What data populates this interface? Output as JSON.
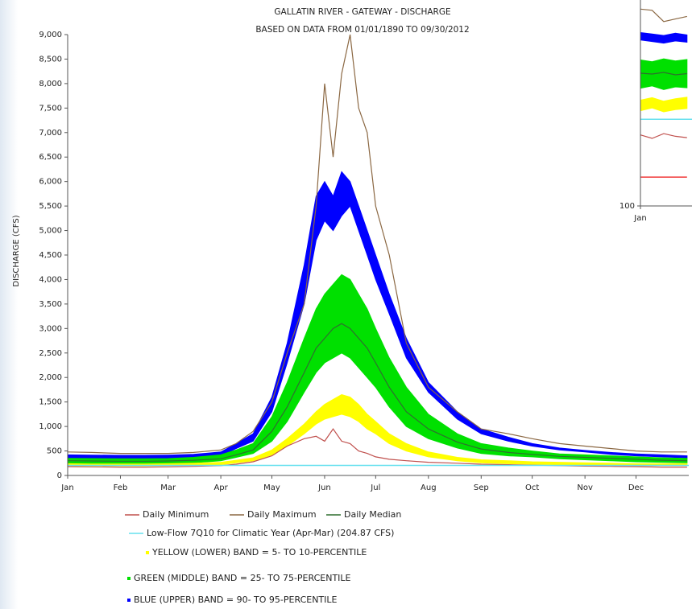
{
  "chart_data": [
    {
      "type": "line",
      "title": "GALLATIN RIVER - GATEWAY - DISCHARGE",
      "subtitle": "BASED ON DATA FROM 01/01/1890 TO 09/30/2012",
      "y_label": "DISCHARGE (CFS)",
      "x": [
        1,
        15,
        32,
        46,
        60,
        75,
        91,
        100,
        110,
        121,
        130,
        140,
        147,
        152,
        157,
        162,
        167,
        172,
        177,
        182,
        190,
        200,
        213,
        230,
        244,
        260,
        274,
        290,
        305,
        320,
        335,
        350,
        365
      ],
      "xlim": [
        1,
        366
      ],
      "xticks": [
        {
          "value": 1,
          "label": "Jan"
        },
        {
          "value": 32,
          "label": "Feb"
        },
        {
          "value": 60,
          "label": "Mar"
        },
        {
          "value": 91,
          "label": "Apr"
        },
        {
          "value": 121,
          "label": "May"
        },
        {
          "value": 152,
          "label": "Jun"
        },
        {
          "value": 182,
          "label": "Jul"
        },
        {
          "value": 213,
          "label": "Aug"
        },
        {
          "value": 244,
          "label": "Sep"
        },
        {
          "value": 274,
          "label": "Oct"
        },
        {
          "value": 305,
          "label": "Nov"
        },
        {
          "value": 335,
          "label": "Dec"
        }
      ],
      "ylim": [
        0,
        9000
      ],
      "yticks": [
        0,
        500,
        {
          "value": 1000,
          "label": "1,000"
        },
        {
          "value": 1500,
          "label": "1,500"
        },
        {
          "value": 2000,
          "label": "2,000"
        },
        {
          "value": 2500,
          "label": "2,500"
        },
        {
          "value": 3000,
          "label": "3,000"
        },
        {
          "value": 3500,
          "label": "3,500"
        },
        {
          "value": 4000,
          "label": "4,000"
        },
        {
          "value": 4500,
          "label": "4,500"
        },
        {
          "value": 5000,
          "label": "5,000"
        },
        {
          "value": 5500,
          "label": "5,500"
        },
        {
          "value": 6000,
          "label": "6,000"
        },
        {
          "value": 6500,
          "label": "6,500"
        },
        {
          "value": 7000,
          "label": "7,000"
        },
        {
          "value": 7500,
          "label": "7,500"
        },
        {
          "value": 8000,
          "label": "8,000"
        },
        {
          "value": 8500,
          "label": "8,500"
        },
        {
          "value": 9000,
          "label": "9,000"
        }
      ],
      "log_y": false,
      "series": [
        {
          "name": "Daily Minimum",
          "color": "#c0504d",
          "values": [
            180,
            175,
            170,
            170,
            175,
            185,
            200,
            230,
            280,
            400,
            600,
            750,
            800,
            700,
            950,
            700,
            650,
            500,
            450,
            380,
            330,
            300,
            270,
            250,
            230,
            220,
            210,
            200,
            190,
            185,
            180,
            170,
            170
          ]
        },
        {
          "name": "Daily Maximum",
          "color": "#8b6843",
          "values": [
            480,
            470,
            450,
            450,
            450,
            470,
            520,
            650,
            900,
            1500,
            2500,
            3500,
            5500,
            8000,
            6500,
            8200,
            9000,
            7500,
            7000,
            5500,
            4500,
            2700,
            1800,
            1300,
            950,
            850,
            750,
            650,
            600,
            550,
            500,
            480,
            480
          ]
        },
        {
          "name": "Daily Median",
          "color": "#2f6f2f",
          "values": [
            300,
            295,
            290,
            290,
            295,
            310,
            340,
            420,
            520,
            900,
            1400,
            2100,
            2600,
            2800,
            3000,
            3100,
            3000,
            2800,
            2600,
            2300,
            1800,
            1300,
            950,
            680,
            540,
            470,
            430,
            390,
            370,
            350,
            330,
            310,
            300
          ]
        },
        {
          "name": "Low-Flow 7Q10 for Climatic Year (Apr-Mar) (204.87 CFS)",
          "color": "#66e0ee",
          "value": 204.87
        },
        {
          "name": "YELLOW (LOWER) BAND = 5- TO 10-PERCENTILE",
          "color": "#ffff00",
          "lower": [
            200,
            195,
            195,
            195,
            200,
            210,
            220,
            260,
            300,
            420,
            600,
            850,
            1050,
            1150,
            1200,
            1250,
            1200,
            1100,
            950,
            850,
            650,
            500,
            380,
            300,
            260,
            240,
            230,
            220,
            210,
            205,
            200,
            200,
            200
          ],
          "upper": [
            240,
            235,
            235,
            235,
            240,
            250,
            270,
            310,
            360,
            520,
            750,
            1050,
            1300,
            1450,
            1550,
            1650,
            1600,
            1450,
            1250,
            1100,
            850,
            650,
            480,
            370,
            320,
            300,
            280,
            270,
            260,
            250,
            240,
            240,
            240
          ]
        },
        {
          "name": "GREEN (MIDDLE) BAND = 25- TO 75-PERCENTILE",
          "color": "#00e000",
          "lower": [
            250,
            245,
            240,
            240,
            245,
            260,
            300,
            370,
            450,
            700,
            1100,
            1700,
            2100,
            2300,
            2400,
            2500,
            2400,
            2200,
            2000,
            1800,
            1400,
            1000,
            750,
            560,
            450,
            400,
            380,
            340,
            320,
            300,
            280,
            270,
            260
          ],
          "upper": [
            350,
            345,
            340,
            340,
            345,
            370,
            420,
            520,
            650,
            1200,
            1900,
            2800,
            3400,
            3700,
            3900,
            4100,
            4000,
            3700,
            3400,
            3000,
            2400,
            1800,
            1250,
            850,
            650,
            560,
            500,
            440,
            420,
            400,
            380,
            360,
            350
          ]
        },
        {
          "name": "BLUE (UPPER) BAND = 90- TO 95-PERCENTILE",
          "color": "#0000ff",
          "lower": [
            350,
            345,
            340,
            340,
            345,
            360,
            400,
            550,
            700,
            1300,
            2300,
            3500,
            4800,
            5200,
            5000,
            5300,
            5500,
            5000,
            4500,
            4000,
            3300,
            2400,
            1700,
            1150,
            850,
            700,
            600,
            520,
            480,
            430,
            400,
            380,
            360
          ],
          "upper": [
            420,
            415,
            410,
            410,
            415,
            430,
            480,
            650,
            850,
            1600,
            2700,
            4300,
            5700,
            6000,
            5700,
            6200,
            6000,
            5500,
            5000,
            4500,
            3700,
            2800,
            1900,
            1300,
            950,
            780,
            650,
            560,
            510,
            470,
            440,
            420,
            400
          ]
        }
      ]
    },
    {
      "type": "line",
      "x": [
        1,
        8,
        15,
        22,
        29
      ],
      "xlim": [
        1,
        32
      ],
      "xticks": [
        {
          "value": 1,
          "label": "Jan"
        }
      ],
      "ylim": [
        100,
        550
      ],
      "yticks": [
        100
      ],
      "log_y": true,
      "series": [
        {
          "color": "#8b6843",
          "values": [
            510,
            505,
            460,
            470,
            480
          ]
        },
        {
          "color": "#0000ff",
          "lower": [
            395,
            390,
            385,
            392,
            388
          ],
          "upper": [
            420,
            415,
            410,
            418,
            412
          ]
        },
        {
          "color": "#00e000",
          "lower": [
            265,
            270,
            262,
            268,
            266
          ],
          "upper": [
            335,
            330,
            338,
            332,
            336
          ]
        },
        {
          "color": "#2f6f2f",
          "values": [
            300,
            298,
            302,
            296,
            299
          ]
        },
        {
          "color": "#ffff00",
          "lower": [
            220,
            225,
            218,
            222,
            224
          ],
          "upper": [
            240,
            245,
            238,
            243,
            246
          ]
        },
        {
          "color": "#66e0ee",
          "value": 204.87
        },
        {
          "color": "#c0504d",
          "values": [
            180,
            175,
            182,
            178,
            176
          ]
        },
        {
          "color": "#ee1111",
          "values": [
            127,
            127,
            127,
            127,
            127
          ]
        }
      ]
    }
  ]
}
